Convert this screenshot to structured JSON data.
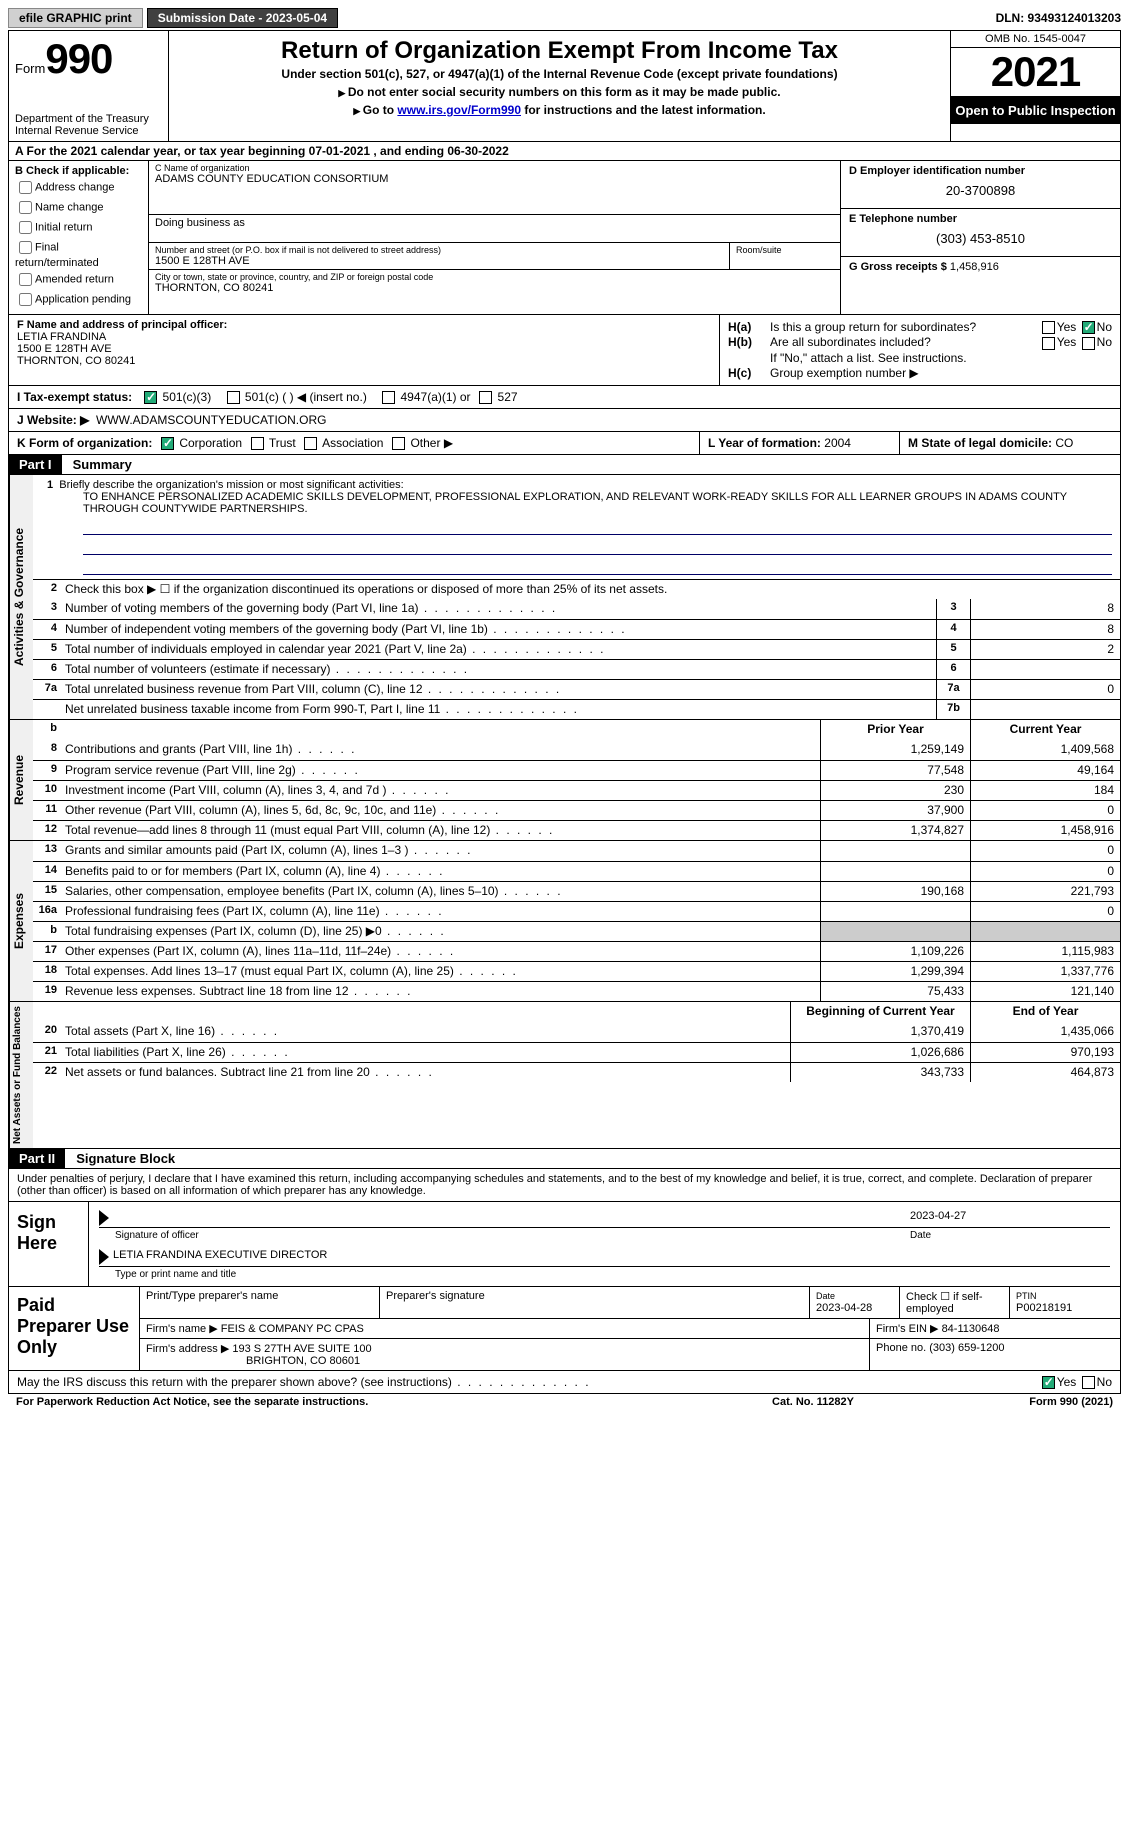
{
  "topbar": {
    "efile": "efile GRAPHIC print",
    "submission": "Submission Date - 2023-05-04",
    "dln": "DLN: 93493124013203"
  },
  "header": {
    "form_word": "Form",
    "form_num": "990",
    "dept": "Department of the Treasury",
    "irs": "Internal Revenue Service",
    "title": "Return of Organization Exempt From Income Tax",
    "sub1": "Under section 501(c), 527, or 4947(a)(1) of the Internal Revenue Code (except private foundations)",
    "sub2": "Do not enter social security numbers on this form as it may be made public.",
    "sub3_pre": "Go to ",
    "sub3_link": "www.irs.gov/Form990",
    "sub3_post": " for instructions and the latest information.",
    "omb": "OMB No. 1545-0047",
    "year": "2021",
    "inspect": "Open to Public Inspection"
  },
  "row_a": "A For the 2021 calendar year, or tax year beginning 07-01-2021    , and ending 06-30-2022",
  "col_b": {
    "hdr": "B Check if applicable:",
    "opts": [
      "Address change",
      "Name change",
      "Initial return",
      "Final return/terminated",
      "Amended return",
      "Application pending"
    ]
  },
  "col_c": {
    "name_lbl": "C Name of organization",
    "name": "ADAMS COUNTY EDUCATION CONSORTIUM",
    "dba_lbl": "Doing business as",
    "street_lbl": "Number and street (or P.O. box if mail is not delivered to street address)",
    "room_lbl": "Room/suite",
    "street": "1500 E 128TH AVE",
    "city_lbl": "City or town, state or province, country, and ZIP or foreign postal code",
    "city": "THORNTON, CO  80241"
  },
  "col_d": {
    "ein_lbl": "D Employer identification number",
    "ein": "20-3700898",
    "phone_lbl": "E Telephone number",
    "phone": "(303) 453-8510",
    "gross_lbl": "G Gross receipts $",
    "gross": "1,458,916"
  },
  "col_f": {
    "lbl": "F  Name and address of principal officer:",
    "name": "LETIA FRANDINA",
    "street": "1500 E 128TH AVE",
    "city": "THORNTON, CO  80241"
  },
  "col_h": {
    "a_lbl": "H(a)",
    "a_txt": "Is this a group return for subordinates?",
    "b_lbl": "H(b)",
    "b_txt": "Are all subordinates included?",
    "b_note": "If \"No,\" attach a list. See instructions.",
    "c_lbl": "H(c)",
    "c_txt": "Group exemption number ▶",
    "yes": "Yes",
    "no": "No"
  },
  "row_i": {
    "lbl": "I   Tax-exempt status:",
    "o1": "501(c)(3)",
    "o2": "501(c) (   ) ◀ (insert no.)",
    "o3": "4947(a)(1) or",
    "o4": "527"
  },
  "row_j": {
    "lbl": "J   Website: ▶",
    "val": "WWW.ADAMSCOUNTYEDUCATION.ORG"
  },
  "row_k": {
    "lbl": "K Form of organization:",
    "o1": "Corporation",
    "o2": "Trust",
    "o3": "Association",
    "o4": "Other ▶",
    "l_lbl": "L Year of formation:",
    "l_val": "2004",
    "m_lbl": "M State of legal domicile:",
    "m_val": "CO"
  },
  "part1": {
    "hdr": "Part I",
    "title": "Summary",
    "q1_lbl": "1",
    "q1": "Briefly describe the organization's mission or most significant activities:",
    "mission": "TO ENHANCE PERSONALIZED ACADEMIC SKILLS DEVELOPMENT, PROFESSIONAL EXPLORATION, AND RELEVANT WORK-READY SKILLS FOR ALL LEARNER GROUPS IN ADAMS COUNTY THROUGH COUNTYWIDE PARTNERSHIPS.",
    "q2_lbl": "2",
    "q2": "Check this box ▶ ☐  if the organization discontinued its operations or disposed of more than 25% of its net assets.",
    "lines_act": [
      {
        "n": "3",
        "t": "Number of voting members of the governing body (Part VI, line 1a)",
        "b": "3",
        "v": "8"
      },
      {
        "n": "4",
        "t": "Number of independent voting members of the governing body (Part VI, line 1b)",
        "b": "4",
        "v": "8"
      },
      {
        "n": "5",
        "t": "Total number of individuals employed in calendar year 2021 (Part V, line 2a)",
        "b": "5",
        "v": "2"
      },
      {
        "n": "6",
        "t": "Total number of volunteers (estimate if necessary)",
        "b": "6",
        "v": ""
      },
      {
        "n": "7a",
        "t": "Total unrelated business revenue from Part VIII, column (C), line 12",
        "b": "7a",
        "v": "0"
      },
      {
        "n": "",
        "t": "Net unrelated business taxable income from Form 990-T, Part I, line 11",
        "b": "7b",
        "v": ""
      }
    ],
    "b_lbl": "b",
    "prior_hdr": "Prior Year",
    "curr_hdr": "Current Year",
    "rev": [
      {
        "n": "8",
        "t": "Contributions and grants (Part VIII, line 1h)",
        "p": "1,259,149",
        "c": "1,409,568"
      },
      {
        "n": "9",
        "t": "Program service revenue (Part VIII, line 2g)",
        "p": "77,548",
        "c": "49,164"
      },
      {
        "n": "10",
        "t": "Investment income (Part VIII, column (A), lines 3, 4, and 7d )",
        "p": "230",
        "c": "184"
      },
      {
        "n": "11",
        "t": "Other revenue (Part VIII, column (A), lines 5, 6d, 8c, 9c, 10c, and 11e)",
        "p": "37,900",
        "c": "0"
      },
      {
        "n": "12",
        "t": "Total revenue—add lines 8 through 11 (must equal Part VIII, column (A), line 12)",
        "p": "1,374,827",
        "c": "1,458,916"
      }
    ],
    "exp": [
      {
        "n": "13",
        "t": "Grants and similar amounts paid (Part IX, column (A), lines 1–3 )",
        "p": "",
        "c": "0"
      },
      {
        "n": "14",
        "t": "Benefits paid to or for members (Part IX, column (A), line 4)",
        "p": "",
        "c": "0"
      },
      {
        "n": "15",
        "t": "Salaries, other compensation, employee benefits (Part IX, column (A), lines 5–10)",
        "p": "190,168",
        "c": "221,793"
      },
      {
        "n": "16a",
        "t": "Professional fundraising fees (Part IX, column (A), line 11e)",
        "p": "",
        "c": "0"
      },
      {
        "n": "b",
        "t": "Total fundraising expenses (Part IX, column (D), line 25) ▶0",
        "p": "shade",
        "c": "shade"
      },
      {
        "n": "17",
        "t": "Other expenses (Part IX, column (A), lines 11a–11d, 11f–24e)",
        "p": "1,109,226",
        "c": "1,115,983"
      },
      {
        "n": "18",
        "t": "Total expenses. Add lines 13–17 (must equal Part IX, column (A), line 25)",
        "p": "1,299,394",
        "c": "1,337,776"
      },
      {
        "n": "19",
        "t": "Revenue less expenses. Subtract line 18 from line 12",
        "p": "75,433",
        "c": "121,140"
      }
    ],
    "na_hdr1": "Beginning of Current Year",
    "na_hdr2": "End of Year",
    "na": [
      {
        "n": "20",
        "t": "Total assets (Part X, line 16)",
        "p": "1,370,419",
        "c": "1,435,066"
      },
      {
        "n": "21",
        "t": "Total liabilities (Part X, line 26)",
        "p": "1,026,686",
        "c": "970,193"
      },
      {
        "n": "22",
        "t": "Net assets or fund balances. Subtract line 21 from line 20",
        "p": "343,733",
        "c": "464,873"
      }
    ],
    "tab_act": "Activities & Governance",
    "tab_rev": "Revenue",
    "tab_exp": "Expenses",
    "tab_na": "Net Assets or Fund Balances"
  },
  "part2": {
    "hdr": "Part II",
    "title": "Signature Block",
    "decl": "Under penalties of perjury, I declare that I have examined this return, including accompanying schedules and statements, and to the best of my knowledge and belief, it is true, correct, and complete. Declaration of preparer (other than officer) is based on all information of which preparer has any knowledge.",
    "sign_here": "Sign Here",
    "sig_officer": "Signature of officer",
    "sig_date": "2023-04-27",
    "date_lbl": "Date",
    "name_title": "LETIA FRANDINA  EXECUTIVE DIRECTOR",
    "type_lbl": "Type or print name and title",
    "paid": "Paid Preparer Use Only",
    "p_name_lbl": "Print/Type preparer's name",
    "p_sig_lbl": "Preparer's signature",
    "p_date_lbl": "Date",
    "p_date": "2023-04-28",
    "p_check": "Check ☐ if self-employed",
    "p_ptin_lbl": "PTIN",
    "p_ptin": "P00218191",
    "firm_name_lbl": "Firm's name    ▶",
    "firm_name": "FEIS & COMPANY PC CPAS",
    "firm_ein_lbl": "Firm's EIN ▶",
    "firm_ein": "84-1130648",
    "firm_addr_lbl": "Firm's address ▶",
    "firm_addr1": "193 S 27TH AVE SUITE 100",
    "firm_addr2": "BRIGHTON, CO  80601",
    "firm_phone_lbl": "Phone no.",
    "firm_phone": "(303) 659-1200",
    "discuss": "May the IRS discuss this return with the preparer shown above? (see instructions)",
    "yes": "Yes",
    "no": "No"
  },
  "footer": {
    "pra": "For Paperwork Reduction Act Notice, see the separate instructions.",
    "cat": "Cat. No. 11282Y",
    "form": "Form 990 (2021)"
  }
}
